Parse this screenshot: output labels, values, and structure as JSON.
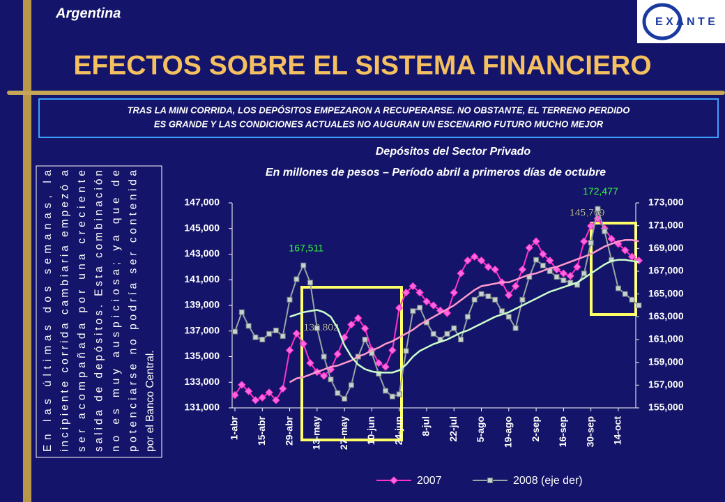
{
  "header": {
    "country": "Argentina",
    "logo": "E X A N T E",
    "title": "EFECTOS SOBRE EL SISTEMA FINANCIERO",
    "summary": [
      "TRAS LA MINI CORRIDA, LOS DEPÓSITOS EMPEZARON A RECUPERARSE. NO OBSTANTE, EL TERRENO PERDIDO",
      "ES GRANDE Y LAS CONDICIONES ACTUALES NO AUGURAN UN ESCENARIO FUTURO MUCHO MEJOR"
    ]
  },
  "sidebar": {
    "lines": [
      "En las últimas dos semanas, la",
      "incipiente corrida cambiaria empezó a",
      "ser acompañada por una creciente",
      "salida de depósitos. Esta combinación",
      "no es muy auspiciosa; ya que de",
      "potenciarse no podría ser contenida",
      "por el Banco Central."
    ]
  },
  "chart_data": {
    "type": "line",
    "title": "Depósitos del Sector Privado",
    "subtitle": "En millones de pesos – Período abril a primeros días de octubre",
    "categories": [
      "1-abr",
      null,
      null,
      null,
      "15-abr",
      null,
      null,
      null,
      "29-abr",
      null,
      null,
      null,
      "13-may",
      null,
      null,
      null,
      "27-may",
      null,
      null,
      null,
      "10-jun",
      null,
      null,
      null,
      "24-jun",
      null,
      null,
      null,
      "8-jul",
      null,
      null,
      null,
      "22-jul",
      null,
      null,
      null,
      "5-ago",
      null,
      null,
      null,
      "19-ago",
      null,
      null,
      null,
      "2-sep",
      null,
      null,
      null,
      "16-sep",
      null,
      null,
      null,
      "30-sep",
      null,
      null,
      null,
      "14-oct",
      null,
      null,
      null
    ],
    "ylim": [
      131000,
      147000
    ],
    "yticks": [
      {
        "value": 131000,
        "label": "131,000"
      },
      {
        "value": 133000,
        "label": "133,000"
      },
      {
        "value": 135000,
        "label": "135,000"
      },
      {
        "value": 137000,
        "label": "137,000"
      },
      {
        "value": 139000,
        "label": "139,000"
      },
      {
        "value": 141000,
        "label": "141,000"
      },
      {
        "value": 143000,
        "label": "143,000"
      },
      {
        "value": 145000,
        "label": "145,000"
      },
      {
        "value": 147000,
        "label": "147,000"
      }
    ],
    "y2lim": [
      155000,
      173000
    ],
    "y2ticks": [
      {
        "value": 155000,
        "label": "155,000"
      },
      {
        "value": 157000,
        "label": "157,000"
      },
      {
        "value": 159000,
        "label": "159,000"
      },
      {
        "value": 161000,
        "label": "161,000"
      },
      {
        "value": 163000,
        "label": "163,000"
      },
      {
        "value": 165000,
        "label": "165,000"
      },
      {
        "value": 167000,
        "label": "167,000"
      },
      {
        "value": 169000,
        "label": "169,000"
      },
      {
        "value": 171000,
        "label": "171,000"
      },
      {
        "value": 173000,
        "label": "173,000"
      }
    ],
    "grid": false,
    "legend": "bottom",
    "series": [
      {
        "name": "2007",
        "color": "#ff33cc",
        "marker": "diamond",
        "values": [
          132000,
          132800,
          132300,
          131600,
          131800,
          132200,
          131600,
          132500,
          135500,
          136802,
          136000,
          134500,
          133800,
          133500,
          134000,
          135200,
          136500,
          137500,
          138000,
          137200,
          135500,
          134500,
          134200,
          135500,
          138800,
          140000,
          140500,
          140000,
          139300,
          139000,
          138600,
          138400,
          140000,
          141500,
          142500,
          142800,
          142500,
          142000,
          141800,
          140800,
          139800,
          140500,
          141800,
          143500,
          144000,
          143000,
          142500,
          141800,
          141500,
          141300,
          142000,
          144000,
          145200,
          145769,
          145000,
          144200,
          143800,
          143300,
          142800,
          142500
        ],
        "value_labels": [
          null,
          null,
          null,
          null,
          null,
          null,
          null,
          null,
          null,
          "136,802",
          null,
          null,
          null,
          null,
          null,
          null,
          null,
          null,
          null,
          null,
          null,
          null,
          null,
          null,
          null,
          null,
          null,
          null,
          null,
          null,
          null,
          null,
          null,
          null,
          null,
          null,
          null,
          null,
          null,
          null,
          null,
          null,
          null,
          null,
          null,
          null,
          null,
          null,
          null,
          null,
          null,
          null,
          null,
          "145,769",
          null,
          null,
          null,
          null,
          null,
          null
        ]
      },
      {
        "name": "2008 (eje der)",
        "color": "#99a6a6",
        "marker": "square",
        "axis": "y2",
        "values": [
          161700,
          163400,
          162200,
          161200,
          161000,
          161500,
          161800,
          161300,
          164500,
          166300,
          167511,
          166000,
          162000,
          159500,
          157500,
          156300,
          155800,
          157000,
          159500,
          161000,
          159800,
          158000,
          156500,
          156000,
          156200,
          160000,
          163500,
          163800,
          162500,
          161500,
          161000,
          161500,
          162000,
          161000,
          163000,
          164500,
          165000,
          164800,
          164500,
          163500,
          163000,
          162000,
          164500,
          166500,
          168000,
          167500,
          167000,
          166500,
          166200,
          166000,
          165800,
          166800,
          169500,
          172477,
          170500,
          168000,
          165500,
          165000,
          164500,
          164000
        ],
        "value_labels": [
          null,
          null,
          null,
          null,
          null,
          null,
          null,
          null,
          null,
          null,
          "167,511",
          null,
          null,
          null,
          null,
          null,
          null,
          null,
          null,
          null,
          null,
          null,
          null,
          null,
          null,
          null,
          null,
          null,
          null,
          null,
          null,
          null,
          null,
          null,
          null,
          null,
          null,
          null,
          null,
          null,
          null,
          null,
          null,
          null,
          null,
          null,
          null,
          null,
          null,
          null,
          null,
          null,
          null,
          "172,477",
          null,
          null,
          null,
          null,
          null,
          null
        ]
      },
      {
        "color": "#ff99cc",
        "values": [
          null,
          null,
          null,
          null,
          null,
          null,
          null,
          null,
          133000,
          133300,
          133400,
          133600,
          133800,
          134000,
          134200,
          134300,
          134500,
          134700,
          135000,
          135200,
          135500,
          135700,
          136000,
          136200,
          136500,
          136800,
          137100,
          137500,
          137800,
          138100,
          138400,
          138700,
          139000,
          139400,
          139800,
          140200,
          140500,
          140600,
          140700,
          140800,
          140800,
          141000,
          141200,
          141400,
          141500,
          141700,
          141900,
          142000,
          142200,
          142400,
          142600,
          142800,
          143000,
          143300,
          143600,
          143800,
          144000,
          144100,
          144100,
          144000
        ]
      },
      {
        "color": "#ccffcc",
        "axis": "y2",
        "values": [
          null,
          null,
          null,
          null,
          null,
          null,
          null,
          null,
          163000,
          163200,
          163400,
          163500,
          163600,
          163400,
          163000,
          162000,
          160500,
          159500,
          158800,
          158400,
          158200,
          158100,
          158100,
          158100,
          158300,
          158800,
          159500,
          160000,
          160300,
          160600,
          160800,
          161000,
          161300,
          161600,
          161800,
          162100,
          162400,
          162700,
          163000,
          163200,
          163400,
          163700,
          164000,
          164300,
          164600,
          164900,
          165200,
          165400,
          165600,
          165800,
          166000,
          166400,
          166800,
          167200,
          167600,
          167900,
          168000,
          168000,
          167900,
          167800
        ]
      }
    ]
  }
}
